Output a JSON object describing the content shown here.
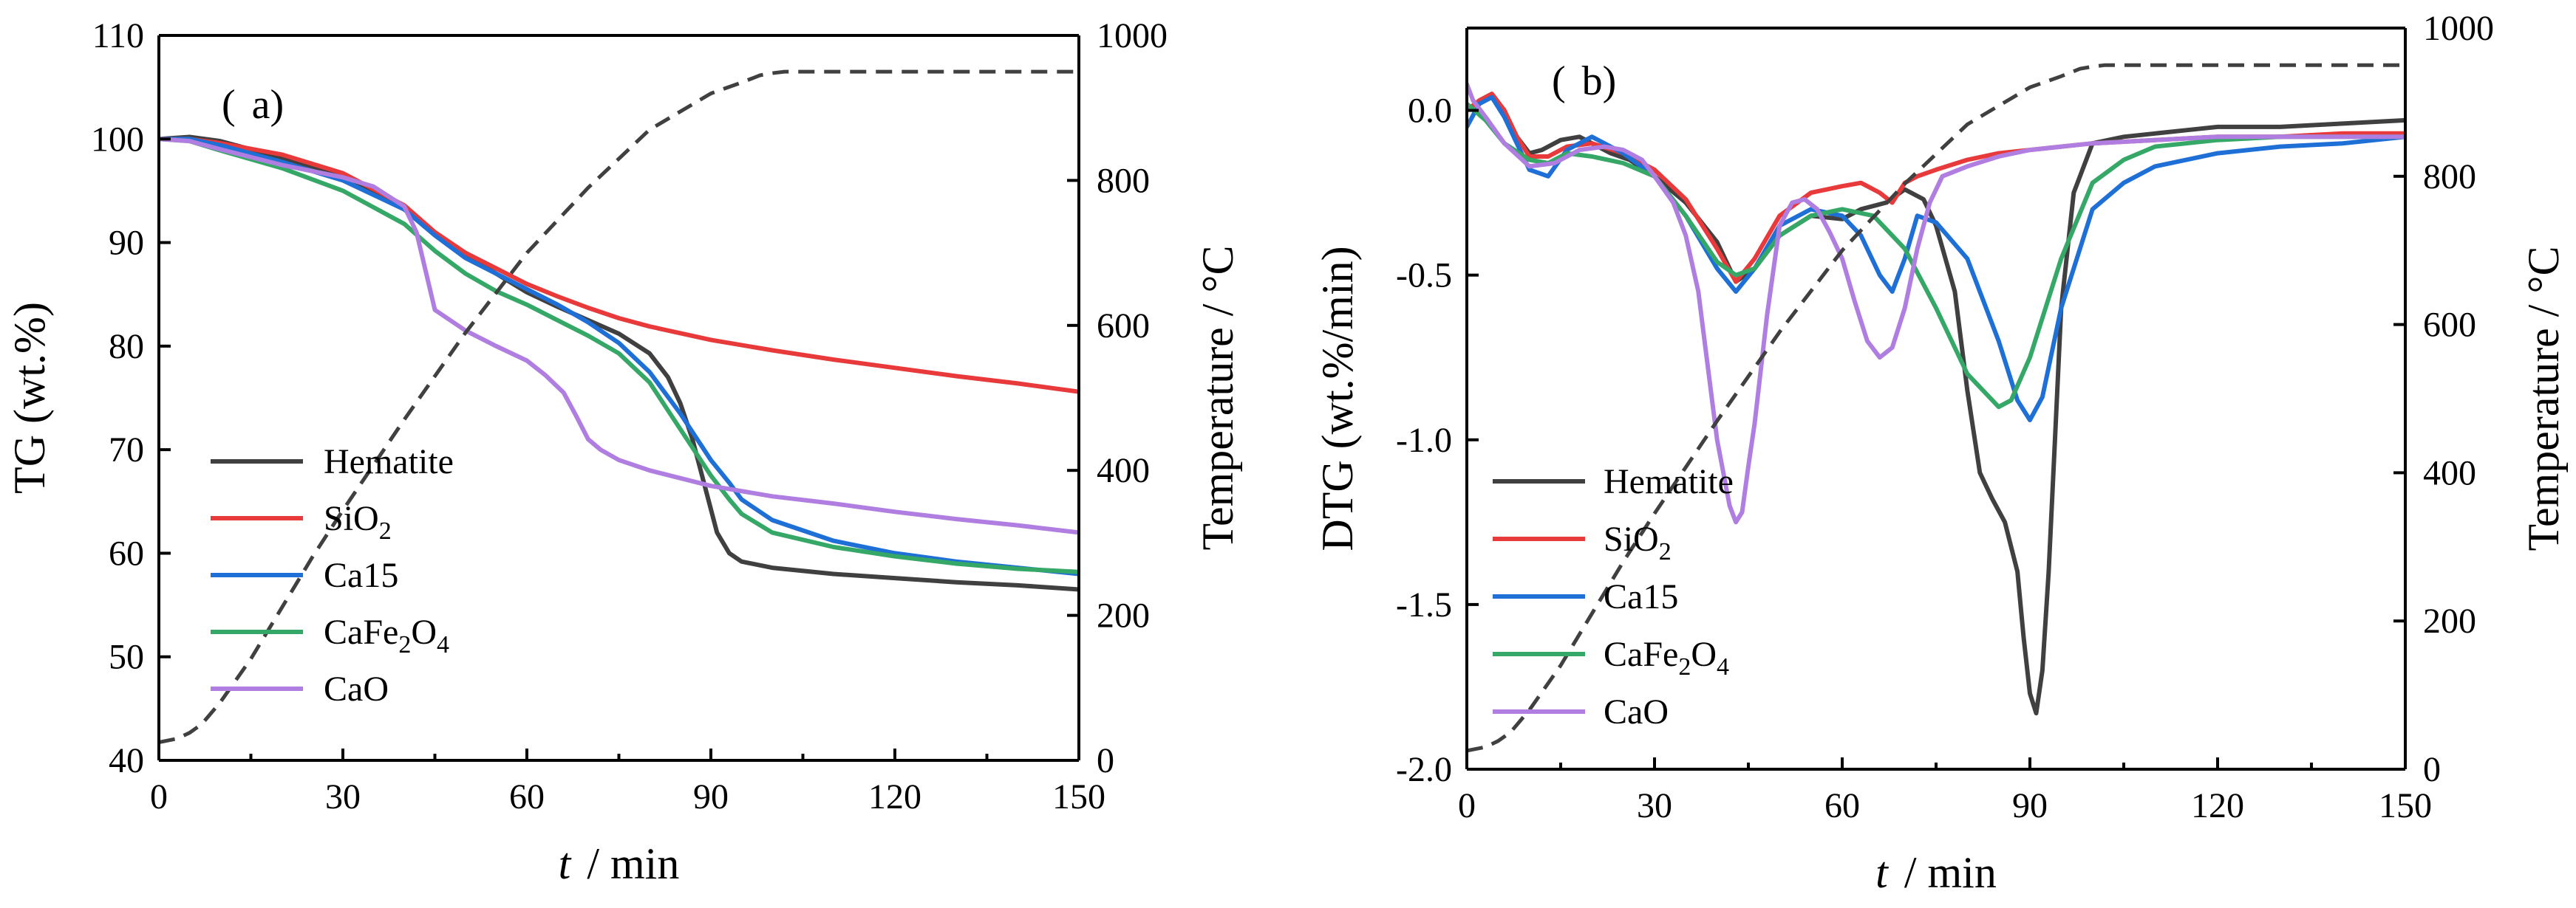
{
  "chart_data": [
    {
      "type": "line",
      "panel": "(a)",
      "panel_parts": {
        "open": "(",
        "letter": "a",
        "close": ")"
      },
      "xlabel": "t / min",
      "xlabel_parts": {
        "var": "t",
        "rest": "/ min"
      },
      "ylabel": "TG (wt.%)",
      "y2label": "Temperature / °C",
      "xlim": [
        0,
        150
      ],
      "ylim": [
        40,
        110
      ],
      "y2lim": [
        0,
        1000
      ],
      "xticks": [
        "0",
        "30",
        "60",
        "90",
        "120",
        "150"
      ],
      "yticks": [
        "40",
        "50",
        "60",
        "70",
        "80",
        "90",
        "100",
        "110"
      ],
      "y2ticks": [
        "0",
        "200",
        "400",
        "600",
        "800",
        "1000"
      ],
      "legend_position": "bottom-left",
      "series": [
        {
          "name": "Hematite",
          "color": "#404040",
          "x": [
            0,
            5,
            10,
            20,
            30,
            40,
            45,
            50,
            55,
            60,
            65,
            70,
            75,
            80,
            83,
            85,
            87,
            89,
            91,
            93,
            95,
            100,
            110,
            120,
            130,
            140,
            150
          ],
          "y": [
            100,
            100.2,
            99.8,
            98.2,
            96.5,
            93.5,
            90.8,
            88.8,
            87,
            85.2,
            83.8,
            82.5,
            81.2,
            79.3,
            77,
            74.5,
            71,
            66.5,
            62,
            60,
            59.2,
            58.6,
            58,
            57.6,
            57.2,
            56.9,
            56.5
          ]
        },
        {
          "name": "SiO2",
          "name_parts": {
            "base": "SiO",
            "sub": "2"
          },
          "color": "#e8393b",
          "x": [
            0,
            5,
            10,
            20,
            30,
            40,
            45,
            50,
            55,
            60,
            65,
            70,
            75,
            80,
            90,
            100,
            110,
            120,
            130,
            140,
            150
          ],
          "y": [
            100,
            100,
            99.6,
            98.5,
            96.7,
            93.6,
            91,
            89,
            87.5,
            86,
            84.8,
            83.7,
            82.7,
            81.9,
            80.6,
            79.6,
            78.7,
            77.9,
            77.1,
            76.4,
            75.6
          ]
        },
        {
          "name": "Ca15",
          "color": "#1e6fd6",
          "x": [
            0,
            5,
            10,
            20,
            30,
            40,
            45,
            50,
            55,
            60,
            65,
            70,
            75,
            80,
            85,
            90,
            93,
            95,
            100,
            110,
            120,
            130,
            140,
            150
          ],
          "y": [
            100,
            100,
            99.4,
            97.8,
            96,
            93.2,
            90.7,
            88.5,
            87,
            85.5,
            84,
            82.3,
            80.3,
            77.5,
            73.5,
            69,
            66.8,
            65.2,
            63.2,
            61.2,
            60,
            59.2,
            58.6,
            58
          ]
        },
        {
          "name": "CaFe2O4",
          "name_parts": {
            "base": "CaFe",
            "sub1": "2",
            "mid": "O",
            "sub2": "4"
          },
          "color": "#35a868",
          "x": [
            0,
            5,
            10,
            20,
            30,
            40,
            45,
            50,
            55,
            60,
            65,
            70,
            75,
            80,
            85,
            90,
            93,
            95,
            100,
            110,
            120,
            130,
            140,
            150
          ],
          "y": [
            100,
            99.8,
            98.9,
            97.2,
            95,
            91.8,
            89.2,
            87,
            85.3,
            84,
            82.5,
            81,
            79.3,
            76.5,
            72,
            67.5,
            65.2,
            63.8,
            62,
            60.6,
            59.7,
            59,
            58.5,
            58.2
          ]
        },
        {
          "name": "CaO",
          "color": "#b07ee0",
          "x": [
            0,
            5,
            10,
            20,
            30,
            35,
            40,
            42,
            44,
            45,
            50,
            55,
            60,
            63,
            66,
            68,
            70,
            72,
            75,
            80,
            90,
            100,
            110,
            120,
            130,
            140,
            150
          ],
          "y": [
            100,
            99.8,
            99,
            97.5,
            96.3,
            95.4,
            93.5,
            91,
            86,
            83.5,
            81.5,
            80,
            78.6,
            77.2,
            75.5,
            73.3,
            71,
            70,
            69,
            68,
            66.5,
            65.5,
            64.8,
            64,
            63.3,
            62.7,
            62
          ]
        },
        {
          "name": "Temperature",
          "axis": "right",
          "dashed": true,
          "color": "#404040",
          "x": [
            0,
            3,
            5,
            7,
            10,
            15,
            20,
            25,
            30,
            40,
            50,
            60,
            70,
            80,
            90,
            95,
            98,
            100,
            102,
            105,
            120,
            135,
            150
          ],
          "y": [
            25,
            30,
            38,
            50,
            80,
            140,
            210,
            280,
            345,
            470,
            590,
            700,
            790,
            870,
            920,
            935,
            945,
            948,
            950,
            950,
            950,
            950,
            950
          ]
        }
      ]
    },
    {
      "type": "line",
      "panel": "(b)",
      "panel_parts": {
        "open": "(",
        "letter": "b",
        "close": ")"
      },
      "xlabel": "t / min",
      "xlabel_parts": {
        "var": "t",
        "rest": "/ min"
      },
      "ylabel": "DTG (wt.%/min)",
      "y2label": "Temperature / °C",
      "xlim": [
        0,
        150
      ],
      "ylim": [
        -2.0,
        0.25
      ],
      "y2lim": [
        0,
        1000
      ],
      "xticks": [
        "0",
        "30",
        "60",
        "90",
        "120",
        "150"
      ],
      "yticks": [
        "-2.0",
        "-1.5",
        "-1.0",
        "-0.5",
        "0.0"
      ],
      "y2ticks": [
        "0",
        "200",
        "400",
        "600",
        "800",
        "1000"
      ],
      "legend_position": "bottom-left",
      "series": [
        {
          "name": "Hematite",
          "color": "#404040",
          "x": [
            0,
            2,
            4,
            6,
            8,
            10,
            12,
            15,
            18,
            20,
            23,
            26,
            30,
            35,
            40,
            43,
            46,
            50,
            55,
            60,
            63,
            67,
            70,
            73,
            75,
            78,
            80,
            82,
            84,
            86,
            88,
            89,
            90,
            91,
            92,
            93,
            94,
            95,
            97,
            100,
            105,
            110,
            115,
            120,
            130,
            140,
            150
          ],
          "y": [
            0,
            0.03,
            0.05,
            0,
            -0.08,
            -0.13,
            -0.12,
            -0.09,
            -0.08,
            -0.1,
            -0.13,
            -0.15,
            -0.2,
            -0.28,
            -0.4,
            -0.52,
            -0.48,
            -0.38,
            -0.32,
            -0.33,
            -0.3,
            -0.28,
            -0.24,
            -0.27,
            -0.35,
            -0.55,
            -0.85,
            -1.1,
            -1.18,
            -1.25,
            -1.4,
            -1.6,
            -1.77,
            -1.83,
            -1.7,
            -1.4,
            -1.0,
            -0.6,
            -0.25,
            -0.1,
            -0.08,
            -0.07,
            -0.06,
            -0.05,
            -0.05,
            -0.04,
            -0.03
          ]
        },
        {
          "name": "SiO2",
          "name_parts": {
            "base": "SiO",
            "sub": "2"
          },
          "color": "#e8393b",
          "x": [
            0,
            2,
            4,
            6,
            8,
            10,
            13,
            16,
            20,
            25,
            30,
            35,
            40,
            43,
            46,
            50,
            55,
            60,
            63,
            66,
            68,
            70,
            72,
            75,
            80,
            85,
            90,
            95,
            100,
            110,
            120,
            130,
            140,
            150
          ],
          "y": [
            0,
            0.03,
            0.05,
            0,
            -0.08,
            -0.14,
            -0.14,
            -0.11,
            -0.1,
            -0.13,
            -0.18,
            -0.27,
            -0.42,
            -0.52,
            -0.45,
            -0.32,
            -0.25,
            -0.23,
            -0.22,
            -0.25,
            -0.28,
            -0.22,
            -0.2,
            -0.18,
            -0.15,
            -0.13,
            -0.12,
            -0.11,
            -0.1,
            -0.09,
            -0.08,
            -0.08,
            -0.07,
            -0.07
          ]
        },
        {
          "name": "Ca15",
          "color": "#1e6fd6",
          "x": [
            0,
            2,
            4,
            6,
            8,
            10,
            13,
            16,
            20,
            25,
            30,
            35,
            40,
            43,
            46,
            50,
            55,
            60,
            63,
            66,
            68,
            70,
            72,
            75,
            80,
            85,
            88,
            90,
            92,
            95,
            100,
            105,
            110,
            120,
            130,
            140,
            150
          ],
          "y": [
            -0.05,
            0.02,
            0.04,
            -0.02,
            -0.1,
            -0.18,
            -0.2,
            -0.12,
            -0.08,
            -0.13,
            -0.2,
            -0.32,
            -0.48,
            -0.55,
            -0.48,
            -0.35,
            -0.3,
            -0.32,
            -0.38,
            -0.5,
            -0.55,
            -0.45,
            -0.32,
            -0.34,
            -0.45,
            -0.7,
            -0.88,
            -0.94,
            -0.87,
            -0.6,
            -0.3,
            -0.22,
            -0.17,
            -0.13,
            -0.11,
            -0.1,
            -0.08
          ]
        },
        {
          "name": "CaFe2O4",
          "name_parts": {
            "base": "CaFe",
            "sub1": "2",
            "mid": "O",
            "sub2": "4"
          },
          "color": "#35a868",
          "x": [
            0,
            3,
            6,
            10,
            13,
            16,
            20,
            25,
            30,
            35,
            40,
            43,
            46,
            50,
            55,
            60,
            65,
            70,
            75,
            80,
            85,
            87,
            90,
            95,
            100,
            105,
            110,
            120,
            130,
            140,
            150
          ],
          "y": [
            0.02,
            -0.03,
            -0.1,
            -0.15,
            -0.16,
            -0.13,
            -0.14,
            -0.16,
            -0.2,
            -0.32,
            -0.46,
            -0.5,
            -0.48,
            -0.38,
            -0.32,
            -0.3,
            -0.32,
            -0.42,
            -0.6,
            -0.8,
            -0.9,
            -0.88,
            -0.75,
            -0.45,
            -0.22,
            -0.15,
            -0.11,
            -0.09,
            -0.08,
            -0.08,
            -0.08
          ]
        },
        {
          "name": "CaO",
          "color": "#b07ee0",
          "x": [
            0,
            1,
            3,
            6,
            10,
            14,
            18,
            22,
            25,
            28,
            30,
            33,
            35,
            37,
            38,
            40,
            42,
            43,
            44,
            45,
            46,
            48,
            50,
            52,
            54,
            56,
            58,
            60,
            62,
            64,
            66,
            68,
            70,
            72,
            74,
            76,
            80,
            85,
            90,
            100,
            110,
            120,
            130,
            140,
            150
          ],
          "y": [
            0.08,
            0.03,
            -0.02,
            -0.1,
            -0.17,
            -0.16,
            -0.12,
            -0.11,
            -0.12,
            -0.15,
            -0.2,
            -0.28,
            -0.38,
            -0.55,
            -0.7,
            -1.0,
            -1.2,
            -1.25,
            -1.22,
            -1.08,
            -0.95,
            -0.62,
            -0.35,
            -0.28,
            -0.27,
            -0.3,
            -0.37,
            -0.45,
            -0.58,
            -0.7,
            -0.75,
            -0.72,
            -0.6,
            -0.42,
            -0.28,
            -0.2,
            -0.17,
            -0.14,
            -0.12,
            -0.1,
            -0.09,
            -0.08,
            -0.08,
            -0.08,
            -0.08
          ]
        },
        {
          "name": "Temperature",
          "axis": "right",
          "dashed": true,
          "color": "#404040",
          "x": [
            0,
            3,
            5,
            7,
            10,
            15,
            20,
            25,
            30,
            40,
            50,
            60,
            70,
            80,
            90,
            95,
            98,
            100,
            102,
            105,
            120,
            135,
            150
          ],
          "y": [
            25,
            30,
            38,
            50,
            80,
            140,
            210,
            280,
            345,
            470,
            590,
            700,
            790,
            870,
            920,
            935,
            945,
            948,
            950,
            950,
            950,
            950,
            950
          ]
        }
      ]
    }
  ]
}
